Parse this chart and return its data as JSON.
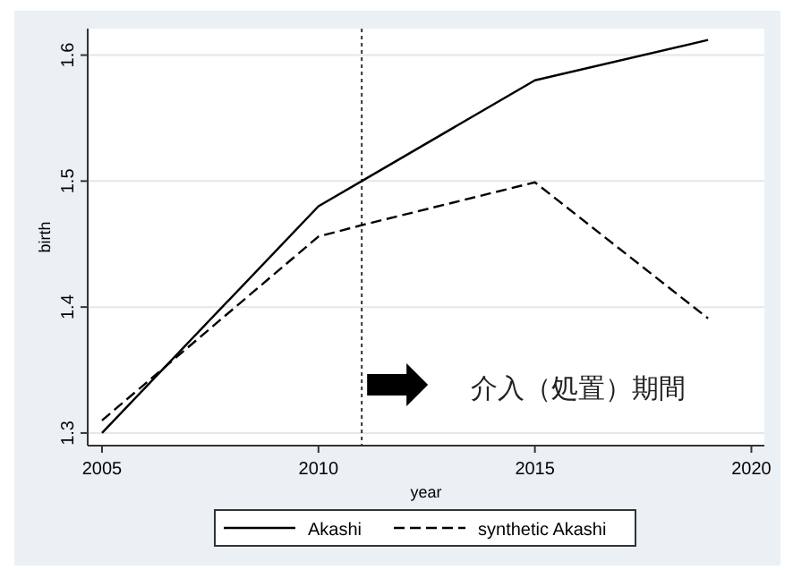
{
  "chart_data": {
    "type": "line",
    "xlabel": "year",
    "ylabel": "birth",
    "xlim": [
      2004.67,
      2020.3
    ],
    "ylim": [
      1.29,
      1.621
    ],
    "xticks": [
      2005,
      2010,
      2015,
      2020
    ],
    "yticks": [
      1.3,
      1.4,
      1.5,
      1.6
    ],
    "grid": "y",
    "legend": "bottom",
    "series": [
      {
        "name": "Akashi",
        "color": "#000000",
        "line_style": "solid",
        "x": [
          2005,
          2010,
          2011,
          2015,
          2019
        ],
        "values": [
          1.3,
          1.48,
          1.5,
          1.58,
          1.612
        ]
      },
      {
        "name": "synthetic Akashi",
        "color": "#000000",
        "line_style": "dashed",
        "x": [
          2005,
          2010,
          2011,
          2015,
          2019
        ],
        "values": [
          1.31,
          1.456,
          1.465,
          1.499,
          1.391
        ]
      }
    ],
    "ref_lines": [
      {
        "axis": "x",
        "value": 2011,
        "line_style": "dotted",
        "color": "#333333"
      }
    ],
    "annotations": [
      "介入（処置）期間"
    ]
  }
}
